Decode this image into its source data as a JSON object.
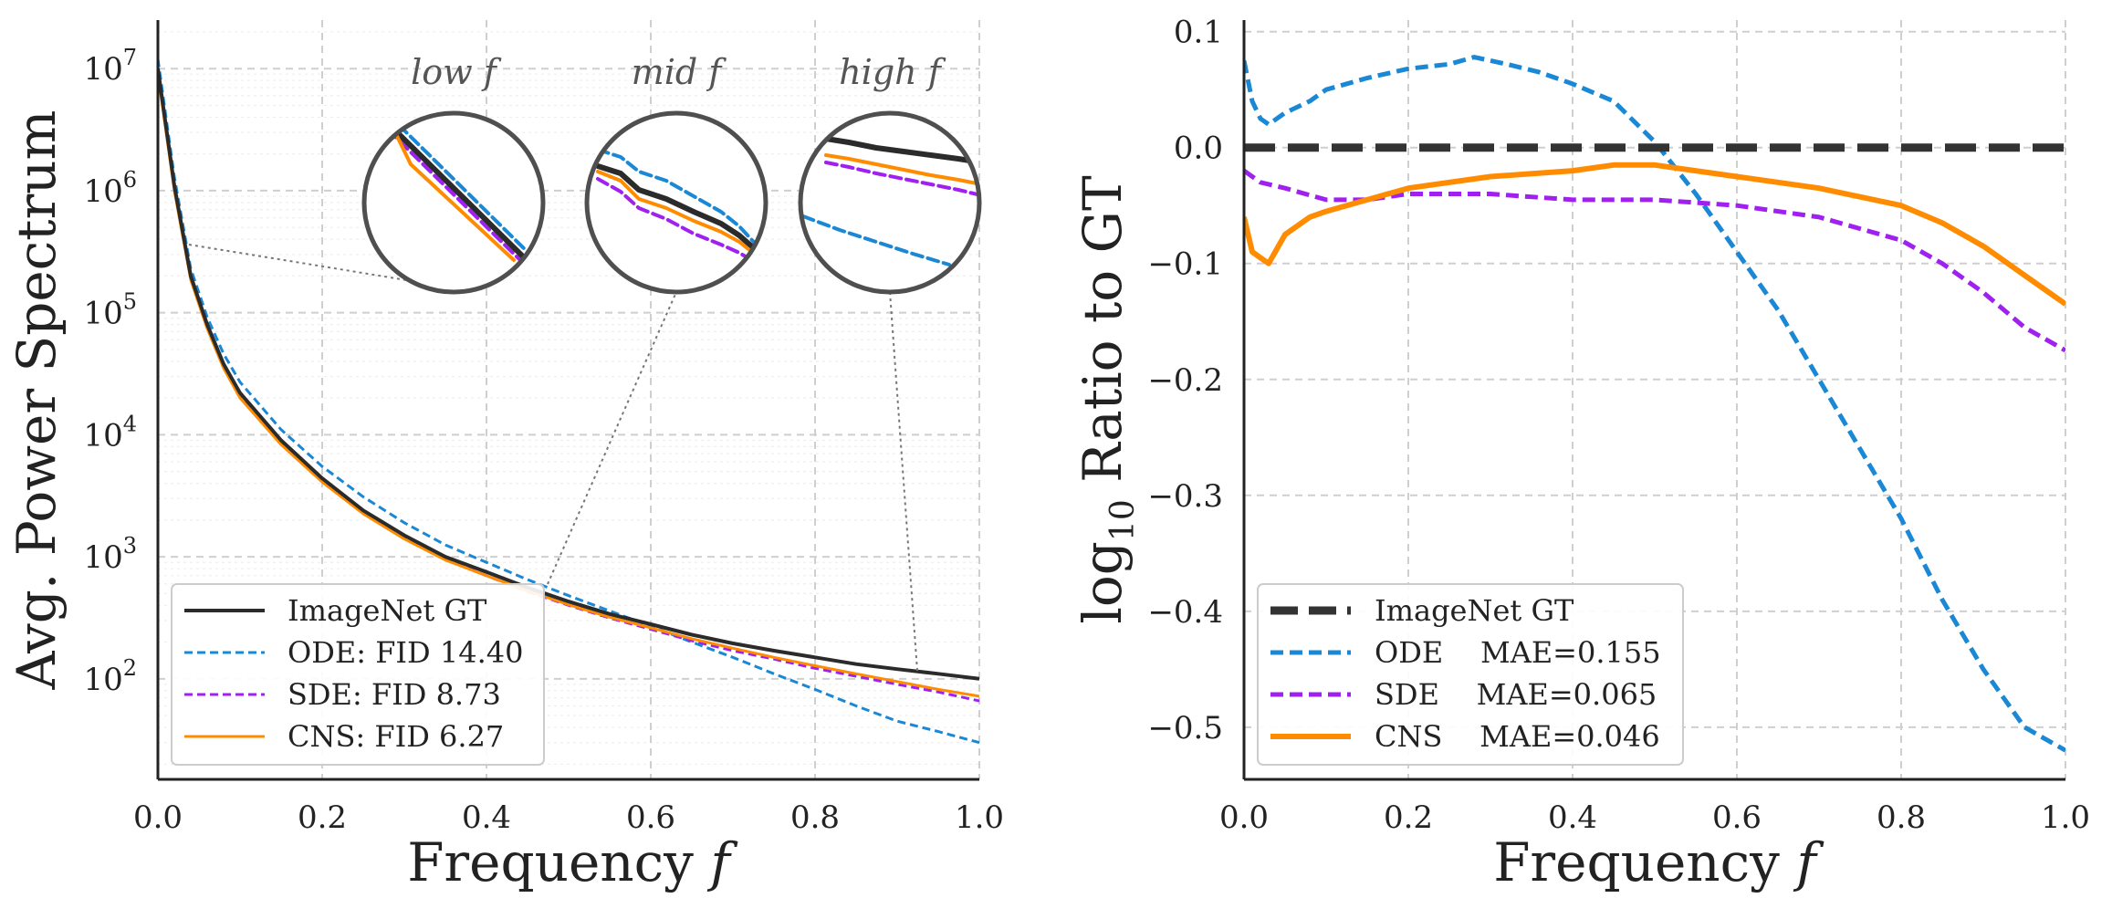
{
  "chart_data": [
    {
      "type": "line",
      "panel": "left",
      "title": "",
      "xlabel": "Frequency",
      "xlabel_var": "f",
      "ylabel": "Avg. Power Spectrum",
      "yscale": "log",
      "xlim": [
        0,
        1
      ],
      "ylim": [
        15,
        25000000
      ],
      "xticks": [
        "0.0",
        "0.2",
        "0.4",
        "0.6",
        "0.8",
        "1.0"
      ],
      "yticks": [
        {
          "value": 100,
          "exp": "2"
        },
        {
          "value": 1000,
          "exp": "3"
        },
        {
          "value": 10000,
          "exp": "4"
        },
        {
          "value": 100000,
          "exp": "5"
        },
        {
          "value": 1000000,
          "exp": "6"
        },
        {
          "value": 10000000,
          "exp": "7"
        }
      ],
      "grid": true,
      "legend_position": "lower-left",
      "x": [
        0.0,
        0.02,
        0.04,
        0.06,
        0.08,
        0.1,
        0.15,
        0.2,
        0.25,
        0.3,
        0.35,
        0.4,
        0.45,
        0.5,
        0.55,
        0.6,
        0.65,
        0.7,
        0.75,
        0.8,
        0.85,
        0.9,
        0.95,
        1.0
      ],
      "series": [
        {
          "name": "ImageNet GT",
          "color": "#2b2b2b",
          "dash": "solid",
          "width": 4,
          "values": [
            10000000,
            1100000,
            200000,
            80000,
            38000,
            22000,
            9000,
            4400,
            2400,
            1500,
            1000,
            750,
            560,
            430,
            340,
            280,
            230,
            195,
            170,
            150,
            132,
            120,
            110,
            100
          ]
        },
        {
          "name": "ODE: FID 14.40",
          "color": "#1a88d4",
          "dash": "dashed",
          "width": 3,
          "values": [
            12000000,
            1300000,
            230000,
            92000,
            46000,
            27000,
            11000,
            5500,
            3100,
            1900,
            1250,
            900,
            650,
            480,
            360,
            270,
            200,
            150,
            110,
            82,
            60,
            45,
            37,
            30
          ]
        },
        {
          "name": "SDE: FID 8.73",
          "color": "#a020f0",
          "dash": "dashed",
          "width": 3,
          "values": [
            9500000,
            1050000,
            190000,
            76000,
            36000,
            21000,
            8600,
            4200,
            2300,
            1420,
            950,
            700,
            520,
            400,
            315,
            255,
            205,
            170,
            145,
            122,
            105,
            90,
            78,
            66
          ]
        },
        {
          "name": "CNS: FID 6.27",
          "color": "#ff8c00",
          "dash": "solid",
          "width": 3,
          "values": [
            9000000,
            1000000,
            185000,
            74000,
            35000,
            20000,
            8300,
            4100,
            2250,
            1400,
            940,
            700,
            525,
            405,
            320,
            262,
            213,
            178,
            150,
            128,
            110,
            95,
            82,
            72
          ]
        }
      ],
      "zoom_labels": [
        "low f",
        "mid f",
        "high f"
      ]
    },
    {
      "type": "line",
      "panel": "right",
      "title": "",
      "xlabel": "Frequency",
      "xlabel_var": "f",
      "ylabel_prefix": "log",
      "ylabel_sub": "10",
      "ylabel_suffix": "Ratio to GT",
      "xlim": [
        0,
        1
      ],
      "ylim": [
        -0.545,
        0.11
      ],
      "xticks": [
        "0.0",
        "0.2",
        "0.4",
        "0.6",
        "0.8",
        "1.0"
      ],
      "yticks": [
        {
          "value": 0.1,
          "label": "0.1"
        },
        {
          "value": 0.0,
          "label": "0.0"
        },
        {
          "value": -0.1,
          "label": "−0.1"
        },
        {
          "value": -0.2,
          "label": "−0.2"
        },
        {
          "value": -0.3,
          "label": "−0.3"
        },
        {
          "value": -0.4,
          "label": "−0.4"
        },
        {
          "value": -0.5,
          "label": "−0.5"
        }
      ],
      "grid": true,
      "legend_position": "lower-left",
      "series": [
        {
          "name": "ImageNet GT",
          "color": "#333333",
          "dash": "dashed-thick",
          "width": 9,
          "x": [
            0.0,
            1.0
          ],
          "values": [
            0.0,
            0.0
          ]
        },
        {
          "name": "ODE    MAE=0.155",
          "color": "#1a88d4",
          "dash": "dashed",
          "width": 5,
          "x": [
            0.0,
            0.01,
            0.02,
            0.03,
            0.05,
            0.08,
            0.1,
            0.15,
            0.2,
            0.25,
            0.28,
            0.32,
            0.36,
            0.4,
            0.45,
            0.5,
            0.55,
            0.6,
            0.65,
            0.7,
            0.75,
            0.8,
            0.85,
            0.9,
            0.95,
            1.0
          ],
          "values": [
            0.075,
            0.04,
            0.025,
            0.02,
            0.03,
            0.04,
            0.05,
            0.06,
            0.068,
            0.072,
            0.078,
            0.072,
            0.065,
            0.055,
            0.04,
            0.005,
            -0.04,
            -0.09,
            -0.14,
            -0.2,
            -0.26,
            -0.32,
            -0.39,
            -0.45,
            -0.5,
            -0.52
          ]
        },
        {
          "name": "SDE    MAE=0.065",
          "color": "#a020f0",
          "dash": "dashed",
          "width": 5,
          "x": [
            0.0,
            0.02,
            0.05,
            0.1,
            0.15,
            0.2,
            0.3,
            0.4,
            0.5,
            0.6,
            0.7,
            0.75,
            0.8,
            0.85,
            0.9,
            0.95,
            1.0
          ],
          "values": [
            -0.02,
            -0.03,
            -0.035,
            -0.045,
            -0.045,
            -0.04,
            -0.04,
            -0.045,
            -0.045,
            -0.05,
            -0.06,
            -0.07,
            -0.08,
            -0.1,
            -0.125,
            -0.155,
            -0.175
          ]
        },
        {
          "name": "CNS    MAE=0.046",
          "color": "#ff8c00",
          "dash": "solid",
          "width": 6,
          "x": [
            0.0,
            0.01,
            0.02,
            0.03,
            0.05,
            0.08,
            0.1,
            0.15,
            0.2,
            0.3,
            0.4,
            0.45,
            0.5,
            0.6,
            0.7,
            0.8,
            0.85,
            0.9,
            0.95,
            1.0
          ],
          "values": [
            -0.06,
            -0.09,
            -0.095,
            -0.1,
            -0.075,
            -0.06,
            -0.055,
            -0.045,
            -0.035,
            -0.025,
            -0.02,
            -0.015,
            -0.015,
            -0.025,
            -0.035,
            -0.05,
            -0.065,
            -0.085,
            -0.11,
            -0.135
          ]
        }
      ]
    }
  ]
}
